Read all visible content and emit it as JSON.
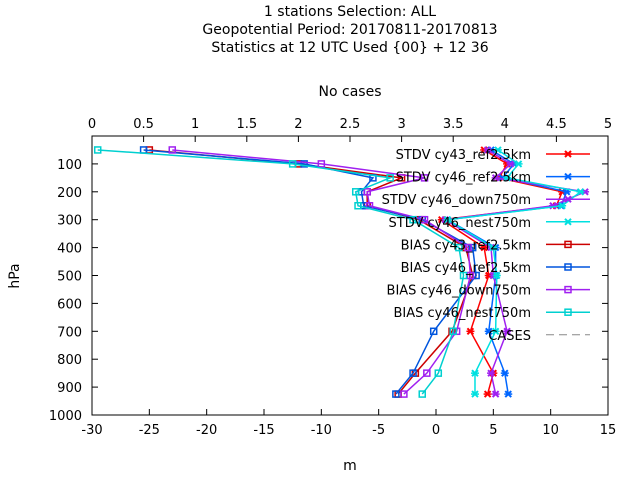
{
  "chart_data": {
    "type": "line",
    "title_lines": [
      "1 stations Selection: ALL",
      "Geopotential  Period: 20170811-20170813",
      "Statistics at 12 UTC  Used {00} + 12 36"
    ],
    "xlabel": "m",
    "ylabel": "hPa",
    "x2label": "No cases",
    "xlim": [
      -30,
      15
    ],
    "ylim": [
      1000,
      0
    ],
    "x2lim": [
      0,
      5
    ],
    "xticks": [
      "-30",
      "-25",
      "-20",
      "-15",
      "-10",
      "-5",
      "0",
      "5",
      "10",
      "15"
    ],
    "x2ticks": [
      "0",
      "0.5",
      "1",
      "1.5",
      "2",
      "2.5",
      "3",
      "3.5",
      "4",
      "4.5",
      "5"
    ],
    "yticks": [
      "100",
      "200",
      "300",
      "400",
      "500",
      "600",
      "700",
      "800",
      "900",
      "1000"
    ],
    "grid": false,
    "legend_position": "top-right",
    "levels": [
      50,
      100,
      150,
      200,
      250,
      300,
      400,
      500,
      700,
      850,
      925
    ],
    "series": [
      {
        "name": "STDV cy43_ref2.5km",
        "color": "#ff0000",
        "marker": "x",
        "values": [
          4.2,
          6.2,
          5.5,
          11.0,
          10.5,
          0.5,
          4.2,
          4.6,
          3.0,
          5.0,
          4.5
        ]
      },
      {
        "name": "STDV cy46_ref2.5km",
        "color": "#0066ff",
        "marker": "x",
        "values": [
          4.8,
          6.8,
          5.8,
          11.4,
          10.9,
          1.0,
          5.2,
          5.2,
          4.6,
          6.0,
          6.3
        ]
      },
      {
        "name": "STDV cy46_down750m",
        "color": "#a020f0",
        "marker": "x",
        "values": [
          4.5,
          6.5,
          5.2,
          13.0,
          10.2,
          0.8,
          4.8,
          5.0,
          6.2,
          4.8,
          5.2
        ]
      },
      {
        "name": "STDV cy46_nest750m",
        "color": "#00e0e0",
        "marker": "x",
        "values": [
          5.4,
          7.2,
          6.2,
          12.6,
          11.0,
          1.0,
          5.0,
          5.3,
          5.2,
          3.4,
          3.4
        ]
      },
      {
        "name": "BIAS cy43_ref2.5km",
        "color": "#cc0000",
        "marker": "square",
        "values": [
          -25.0,
          -12.0,
          -3.0,
          -6.0,
          -6.0,
          -1.5,
          2.6,
          3.2,
          1.4,
          -1.8,
          -3.3
        ]
      },
      {
        "name": "BIAS cy46_ref2.5km",
        "color": "#0055dd",
        "marker": "square",
        "values": [
          -25.5,
          -11.5,
          -5.5,
          -6.5,
          -6.3,
          -1.2,
          3.2,
          3.5,
          -0.2,
          -2.0,
          -3.5
        ]
      },
      {
        "name": "BIAS cy46_down750m",
        "color": "#a020f0",
        "marker": "square",
        "values": [
          -23.0,
          -10.0,
          -1.0,
          -6.0,
          -5.8,
          -1.0,
          2.8,
          3.0,
          1.8,
          -0.8,
          -2.8
        ]
      },
      {
        "name": "BIAS cy46_nest750m",
        "color": "#00d0d0",
        "marker": "square",
        "values": [
          -29.5,
          -12.5,
          -4.0,
          -7.0,
          -6.8,
          -2.0,
          2.0,
          2.4,
          1.5,
          0.2,
          -1.2
        ]
      }
    ],
    "cases": {
      "name": "CASES",
      "color": "#888888",
      "dash": "dashed"
    }
  }
}
